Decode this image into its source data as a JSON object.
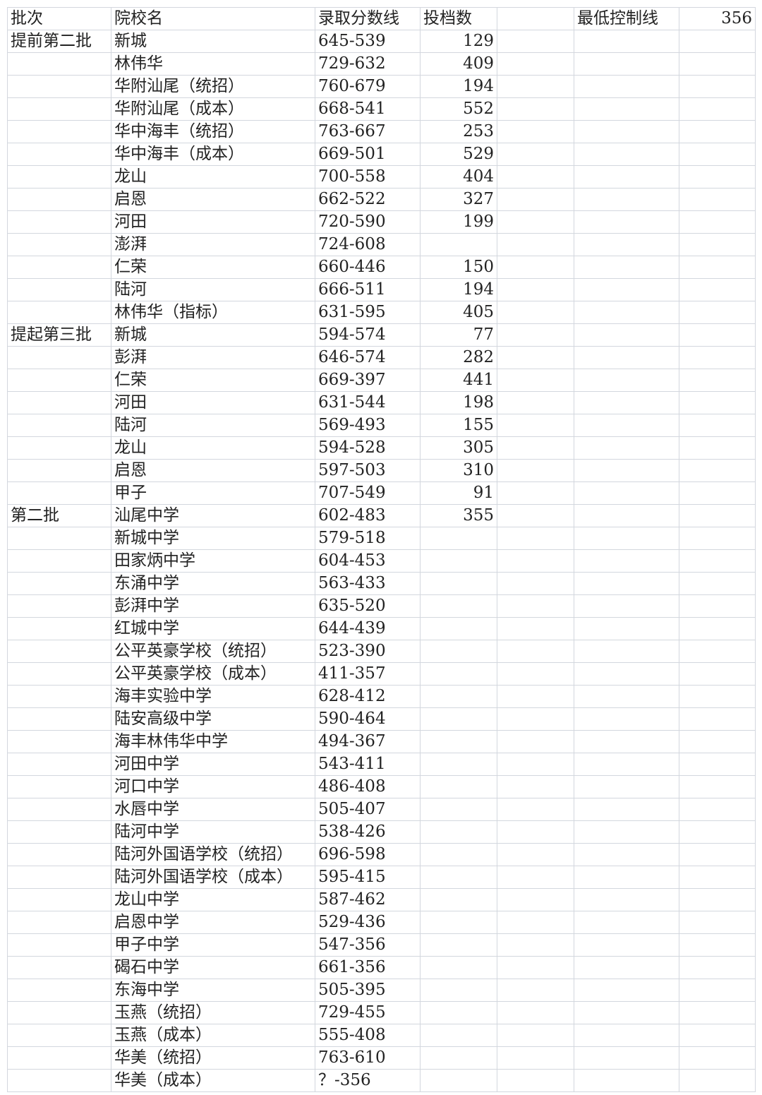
{
  "header": {
    "batch": "批次",
    "school": "院校名",
    "score": "录取分数线",
    "count": "投档数",
    "control_label": "最低控制线",
    "control_value": "356"
  },
  "rows": [
    [
      "提前第二批",
      "新城",
      "645-539",
      "129"
    ],
    [
      "",
      "林伟华",
      "729-632",
      "409"
    ],
    [
      "",
      "华附汕尾（统招）",
      "760-679",
      "194"
    ],
    [
      "",
      "华附汕尾（成本）",
      "668-541",
      "552"
    ],
    [
      "",
      "华中海丰（统招）",
      "763-667",
      "253"
    ],
    [
      "",
      "华中海丰（成本）",
      "669-501",
      "529"
    ],
    [
      "",
      "龙山",
      "700-558",
      "404"
    ],
    [
      "",
      "启恩",
      "662-522",
      "327"
    ],
    [
      "",
      "河田",
      "720-590",
      "199"
    ],
    [
      "",
      "澎湃",
      "724-608",
      ""
    ],
    [
      "",
      "仁荣",
      "660-446",
      "150"
    ],
    [
      "",
      "陆河",
      "666-511",
      "194"
    ],
    [
      "",
      "林伟华（指标）",
      "631-595",
      "405"
    ],
    [
      "提起第三批",
      "新城",
      "594-574",
      "77"
    ],
    [
      "",
      "彭湃",
      "646-574",
      "282"
    ],
    [
      "",
      "仁荣",
      "669-397",
      "441"
    ],
    [
      "",
      "河田",
      "631-544",
      "198"
    ],
    [
      "",
      "陆河",
      "569-493",
      "155"
    ],
    [
      "",
      "龙山",
      "594-528",
      "305"
    ],
    [
      "",
      "启恩",
      "597-503",
      "310"
    ],
    [
      "",
      "甲子",
      "707-549",
      "91"
    ],
    [
      "第二批",
      "汕尾中学",
      "602-483",
      "355"
    ],
    [
      "",
      "新城中学",
      "579-518",
      ""
    ],
    [
      "",
      "田家炳中学",
      "604-453",
      ""
    ],
    [
      "",
      "东涌中学",
      "563-433",
      ""
    ],
    [
      "",
      "彭湃中学",
      "635-520",
      ""
    ],
    [
      "",
      "红城中学",
      "644-439",
      ""
    ],
    [
      "",
      "公平英豪学校（统招）",
      "523-390",
      ""
    ],
    [
      "",
      "公平英豪学校（成本）",
      "411-357",
      ""
    ],
    [
      "",
      "海丰实验中学",
      "628-412",
      ""
    ],
    [
      "",
      "陆安高级中学",
      "590-464",
      ""
    ],
    [
      "",
      "海丰林伟华中学",
      "494-367",
      ""
    ],
    [
      "",
      "河田中学",
      "543-411",
      ""
    ],
    [
      "",
      "河口中学",
      "486-408",
      ""
    ],
    [
      "",
      "水唇中学",
      "505-407",
      ""
    ],
    [
      "",
      "陆河中学",
      "538-426",
      ""
    ],
    [
      "",
      "陆河外国语学校（统招）",
      "696-598",
      ""
    ],
    [
      "",
      "陆河外国语学校（成本）",
      "595-415",
      ""
    ],
    [
      "",
      "龙山中学",
      "587-462",
      ""
    ],
    [
      "",
      "启恩中学",
      "529-436",
      ""
    ],
    [
      "",
      "甲子中学",
      "547-356",
      ""
    ],
    [
      "",
      "碣石中学",
      "661-356",
      ""
    ],
    [
      "",
      "东海中学",
      "505-395",
      ""
    ],
    [
      "",
      "玉燕（统招）",
      "729-455",
      ""
    ],
    [
      "",
      "玉燕（成本）",
      "555-408",
      ""
    ],
    [
      "",
      "华美（统招）",
      "763-610",
      ""
    ],
    [
      "",
      "华美（成本）",
      "？-356",
      ""
    ]
  ]
}
